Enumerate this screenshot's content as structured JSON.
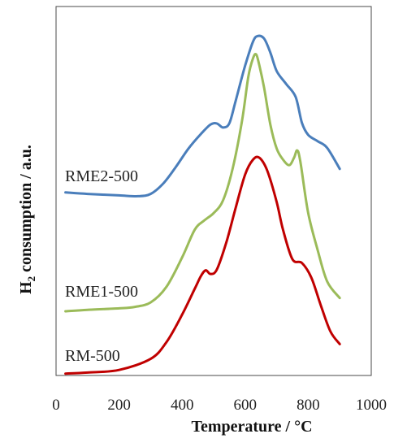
{
  "chart_data": {
    "type": "line",
    "title": "",
    "xlabel": "Temperature / °C",
    "ylabel_prefix": "H",
    "ylabel_subscript": "2",
    "ylabel_suffix": " consumption / a.u.",
    "xlim": [
      0,
      1000
    ],
    "ylim": [
      0,
      1
    ],
    "grid": false,
    "legend": "none",
    "x_ticks": [
      "0",
      "200",
      "400",
      "600",
      "800",
      "1000"
    ],
    "series": [
      {
        "name": "RME2-500",
        "color": "#4a7ebb",
        "points": [
          [
            30,
            0.496
          ],
          [
            100,
            0.492
          ],
          [
            200,
            0.488
          ],
          [
            260,
            0.486
          ],
          [
            300,
            0.492
          ],
          [
            340,
            0.52
          ],
          [
            380,
            0.565
          ],
          [
            420,
            0.615
          ],
          [
            460,
            0.655
          ],
          [
            490,
            0.68
          ],
          [
            510,
            0.683
          ],
          [
            530,
            0.672
          ],
          [
            550,
            0.684
          ],
          [
            570,
            0.745
          ],
          [
            600,
            0.84
          ],
          [
            625,
            0.905
          ],
          [
            640,
            0.92
          ],
          [
            660,
            0.913
          ],
          [
            680,
            0.875
          ],
          [
            700,
            0.825
          ],
          [
            730,
            0.79
          ],
          [
            760,
            0.755
          ],
          [
            780,
            0.685
          ],
          [
            800,
            0.652
          ],
          [
            830,
            0.635
          ],
          [
            860,
            0.617
          ],
          [
            900,
            0.56
          ]
        ]
      },
      {
        "name": "RME1-500",
        "color": "#9bbb59",
        "points": [
          [
            30,
            0.174
          ],
          [
            100,
            0.178
          ],
          [
            200,
            0.182
          ],
          [
            250,
            0.186
          ],
          [
            300,
            0.198
          ],
          [
            350,
            0.24
          ],
          [
            400,
            0.32
          ],
          [
            440,
            0.395
          ],
          [
            470,
            0.42
          ],
          [
            500,
            0.44
          ],
          [
            530,
            0.475
          ],
          [
            560,
            0.56
          ],
          [
            590,
            0.69
          ],
          [
            610,
            0.81
          ],
          [
            625,
            0.86
          ],
          [
            635,
            0.87
          ],
          [
            645,
            0.84
          ],
          [
            660,
            0.78
          ],
          [
            680,
            0.68
          ],
          [
            700,
            0.615
          ],
          [
            720,
            0.585
          ],
          [
            740,
            0.57
          ],
          [
            755,
            0.59
          ],
          [
            765,
            0.61
          ],
          [
            775,
            0.58
          ],
          [
            800,
            0.44
          ],
          [
            830,
            0.34
          ],
          [
            860,
            0.255
          ],
          [
            900,
            0.21
          ]
        ]
      },
      {
        "name": "RM-500",
        "color": "#c00000",
        "points": [
          [
            30,
            0.005
          ],
          [
            100,
            0.008
          ],
          [
            200,
            0.015
          ],
          [
            300,
            0.045
          ],
          [
            350,
            0.09
          ],
          [
            400,
            0.165
          ],
          [
            440,
            0.235
          ],
          [
            460,
            0.27
          ],
          [
            475,
            0.285
          ],
          [
            490,
            0.275
          ],
          [
            510,
            0.287
          ],
          [
            540,
            0.36
          ],
          [
            570,
            0.455
          ],
          [
            600,
            0.545
          ],
          [
            625,
            0.585
          ],
          [
            645,
            0.59
          ],
          [
            670,
            0.555
          ],
          [
            700,
            0.47
          ],
          [
            720,
            0.395
          ],
          [
            750,
            0.315
          ],
          [
            780,
            0.305
          ],
          [
            810,
            0.265
          ],
          [
            840,
            0.19
          ],
          [
            870,
            0.12
          ],
          [
            900,
            0.085
          ]
        ]
      }
    ]
  }
}
